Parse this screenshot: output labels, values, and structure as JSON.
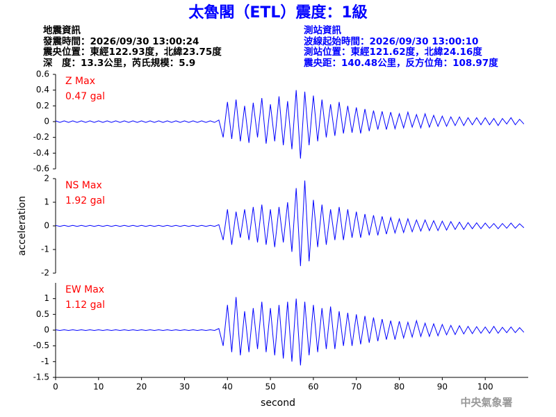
{
  "header": {
    "title": "太魯閣（ETL）震度：1級",
    "left": [
      "地震資訊",
      "發震時間：2026/09/30 13:00:24",
      "震央位置：東經122.93度，北緯23.75度",
      "深　度：13.3公里，芮氏規模：5.9"
    ],
    "right": [
      "測站資訊",
      "波線起始時間：2026/09/30 13:00:10",
      "測站位置：東經121.62度，北緯24.16度",
      "震央距：140.48公里，反方位角：108.97度"
    ],
    "footer": "中央氣象署"
  },
  "chart_data": [
    {
      "type": "line",
      "annotation": [
        "Z Max",
        "0.47 gal"
      ],
      "annotation_color": "#ff0000",
      "color": "#0000ff",
      "xlim": [
        0,
        110
      ],
      "ylim": [
        -0.6,
        0.6
      ],
      "yticks": [
        -0.6,
        -0.4,
        -0.2,
        0,
        0.2,
        0.4,
        0.6
      ],
      "x": [
        0,
        1,
        2,
        3,
        4,
        5,
        6,
        7,
        8,
        9,
        10,
        11,
        12,
        13,
        14,
        15,
        16,
        17,
        18,
        19,
        20,
        21,
        22,
        23,
        24,
        25,
        26,
        27,
        28,
        29,
        30,
        31,
        32,
        33,
        34,
        35,
        36,
        37,
        38,
        39,
        40,
        41,
        42,
        43,
        44,
        45,
        46,
        47,
        48,
        49,
        50,
        51,
        52,
        53,
        54,
        55,
        56,
        57,
        58,
        59,
        60,
        61,
        62,
        63,
        64,
        65,
        66,
        67,
        68,
        69,
        70,
        71,
        72,
        73,
        74,
        75,
        76,
        77,
        78,
        79,
        80,
        81,
        82,
        83,
        84,
        85,
        86,
        87,
        88,
        89,
        90,
        91,
        92,
        93,
        94,
        95,
        96,
        97,
        98,
        99,
        100,
        101,
        102,
        103,
        104,
        105,
        106,
        107,
        108,
        109
      ],
      "values": [
        0.01,
        -0.01,
        0.01,
        -0.01,
        0.01,
        -0.01,
        0.01,
        -0.01,
        0.01,
        -0.01,
        0.01,
        -0.01,
        0.01,
        -0.01,
        0.01,
        -0.01,
        0.01,
        -0.01,
        0.01,
        -0.01,
        0.01,
        -0.01,
        0.01,
        -0.01,
        0.01,
        -0.01,
        0.01,
        -0.01,
        0.01,
        -0.01,
        0.01,
        -0.01,
        0.01,
        -0.01,
        0.01,
        -0.01,
        0.01,
        -0.01,
        0.02,
        -0.2,
        0.25,
        -0.22,
        0.28,
        -0.25,
        0.2,
        -0.27,
        0.24,
        -0.2,
        0.3,
        -0.28,
        0.22,
        -0.25,
        0.32,
        -0.3,
        0.26,
        -0.35,
        0.4,
        -0.47,
        0.38,
        -0.3,
        0.33,
        -0.25,
        0.28,
        -0.2,
        0.22,
        -0.18,
        0.25,
        -0.15,
        0.2,
        -0.14,
        0.18,
        -0.15,
        0.16,
        -0.12,
        0.14,
        -0.1,
        0.13,
        -0.1,
        0.12,
        -0.09,
        0.1,
        -0.08,
        0.12,
        -0.07,
        0.09,
        -0.08,
        0.1,
        -0.07,
        0.08,
        -0.06,
        0.07,
        -0.06,
        0.06,
        -0.05,
        0.06,
        -0.05,
        0.05,
        -0.04,
        0.05,
        -0.04,
        0.05,
        -0.04,
        0.04,
        -0.05,
        0.04,
        -0.03,
        0.05,
        -0.04,
        0.03,
        -0.03
      ]
    },
    {
      "type": "line",
      "annotation": [
        "NS Max",
        "1.92 gal"
      ],
      "annotation_color": "#ff0000",
      "color": "#0000ff",
      "y_label": "acceleration",
      "xlim": [
        0,
        110
      ],
      "ylim": [
        -2,
        2
      ],
      "yticks": [
        -2,
        -1,
        0,
        1,
        2
      ],
      "x": [
        0,
        1,
        2,
        3,
        4,
        5,
        6,
        7,
        8,
        9,
        10,
        11,
        12,
        13,
        14,
        15,
        16,
        17,
        18,
        19,
        20,
        21,
        22,
        23,
        24,
        25,
        26,
        27,
        28,
        29,
        30,
        31,
        32,
        33,
        34,
        35,
        36,
        37,
        38,
        39,
        40,
        41,
        42,
        43,
        44,
        45,
        46,
        47,
        48,
        49,
        50,
        51,
        52,
        53,
        54,
        55,
        56,
        57,
        58,
        59,
        60,
        61,
        62,
        63,
        64,
        65,
        66,
        67,
        68,
        69,
        70,
        71,
        72,
        73,
        74,
        75,
        76,
        77,
        78,
        79,
        80,
        81,
        82,
        83,
        84,
        85,
        86,
        87,
        88,
        89,
        90,
        91,
        92,
        93,
        94,
        95,
        96,
        97,
        98,
        99,
        100,
        101,
        102,
        103,
        104,
        105,
        106,
        107,
        108,
        109
      ],
      "values": [
        0.02,
        -0.02,
        0.02,
        -0.02,
        0.02,
        -0.02,
        0.02,
        -0.02,
        0.02,
        -0.02,
        0.02,
        -0.02,
        0.02,
        -0.02,
        0.02,
        -0.02,
        0.02,
        -0.02,
        0.02,
        -0.02,
        0.02,
        -0.02,
        0.02,
        -0.02,
        0.02,
        -0.02,
        0.02,
        -0.02,
        0.02,
        -0.02,
        0.02,
        -0.02,
        0.02,
        -0.02,
        0.02,
        -0.02,
        0.02,
        -0.02,
        0.05,
        -0.6,
        0.7,
        -0.8,
        0.6,
        -0.5,
        0.7,
        -0.6,
        0.8,
        -0.7,
        0.9,
        -0.8,
        0.7,
        -0.9,
        0.8,
        -0.7,
        1.0,
        -1.1,
        1.6,
        -1.7,
        1.92,
        -1.5,
        1.1,
        -0.9,
        0.9,
        -0.8,
        0.7,
        -0.6,
        0.8,
        -0.6,
        0.7,
        -0.5,
        0.6,
        -0.5,
        0.5,
        -0.4,
        0.45,
        -0.4,
        0.4,
        -0.35,
        0.35,
        -0.3,
        0.3,
        -0.28,
        0.3,
        -0.25,
        0.25,
        -0.22,
        0.25,
        -0.2,
        0.22,
        -0.2,
        0.2,
        -0.18,
        0.18,
        -0.15,
        0.16,
        -0.15,
        0.14,
        -0.12,
        0.13,
        -0.12,
        0.12,
        -0.1,
        0.1,
        -0.12,
        0.1,
        -0.1,
        0.12,
        -0.1,
        0.09,
        -0.08
      ]
    },
    {
      "type": "line",
      "annotation": [
        "EW Max",
        "1.12 gal"
      ],
      "annotation_color": "#ff0000",
      "color": "#0000ff",
      "x_label": "second",
      "xlim": [
        0,
        110
      ],
      "xticks": [
        0,
        10,
        20,
        30,
        40,
        50,
        60,
        70,
        80,
        90,
        100
      ],
      "ylim": [
        -1.5,
        1.5
      ],
      "yticks": [
        -1.5,
        -1,
        -0.5,
        0,
        0.5,
        1
      ],
      "x": [
        0,
        1,
        2,
        3,
        4,
        5,
        6,
        7,
        8,
        9,
        10,
        11,
        12,
        13,
        14,
        15,
        16,
        17,
        18,
        19,
        20,
        21,
        22,
        23,
        24,
        25,
        26,
        27,
        28,
        29,
        30,
        31,
        32,
        33,
        34,
        35,
        36,
        37,
        38,
        39,
        40,
        41,
        42,
        43,
        44,
        45,
        46,
        47,
        48,
        49,
        50,
        51,
        52,
        53,
        54,
        55,
        56,
        57,
        58,
        59,
        60,
        61,
        62,
        63,
        64,
        65,
        66,
        67,
        68,
        69,
        70,
        71,
        72,
        73,
        74,
        75,
        76,
        77,
        78,
        79,
        80,
        81,
        82,
        83,
        84,
        85,
        86,
        87,
        88,
        89,
        90,
        91,
        92,
        93,
        94,
        95,
        96,
        97,
        98,
        99,
        100,
        101,
        102,
        103,
        104,
        105,
        106,
        107,
        108,
        109
      ],
      "values": [
        0.01,
        -0.01,
        0.01,
        -0.01,
        0.01,
        -0.01,
        0.01,
        -0.01,
        0.01,
        -0.01,
        0.01,
        -0.01,
        0.01,
        -0.01,
        0.01,
        -0.01,
        0.01,
        -0.01,
        0.01,
        -0.01,
        0.01,
        -0.01,
        0.01,
        -0.01,
        0.01,
        -0.01,
        0.01,
        -0.01,
        0.01,
        -0.01,
        0.01,
        -0.01,
        0.01,
        -0.01,
        0.01,
        -0.01,
        0.01,
        -0.01,
        0.05,
        -0.5,
        0.8,
        -0.7,
        1.05,
        -0.8,
        0.6,
        -0.7,
        0.7,
        -0.6,
        0.9,
        -0.7,
        0.7,
        -0.8,
        0.8,
        -0.9,
        0.9,
        -1.0,
        1.0,
        -1.12,
        0.9,
        -0.8,
        0.8,
        -0.7,
        0.7,
        -0.6,
        0.75,
        -0.6,
        0.6,
        -0.5,
        0.55,
        -0.5,
        0.5,
        -0.45,
        0.45,
        -0.4,
        0.4,
        -0.35,
        0.35,
        -0.3,
        0.3,
        -0.3,
        0.28,
        -0.25,
        0.25,
        -0.22,
        0.3,
        -0.2,
        0.22,
        -0.2,
        0.2,
        -0.18,
        0.18,
        -0.15,
        0.15,
        -0.14,
        0.14,
        -0.12,
        0.12,
        -0.11,
        0.11,
        -0.1,
        0.1,
        -0.1,
        0.12,
        -0.1,
        0.09,
        -0.08,
        0.1,
        -0.08,
        0.08,
        -0.07
      ]
    }
  ]
}
